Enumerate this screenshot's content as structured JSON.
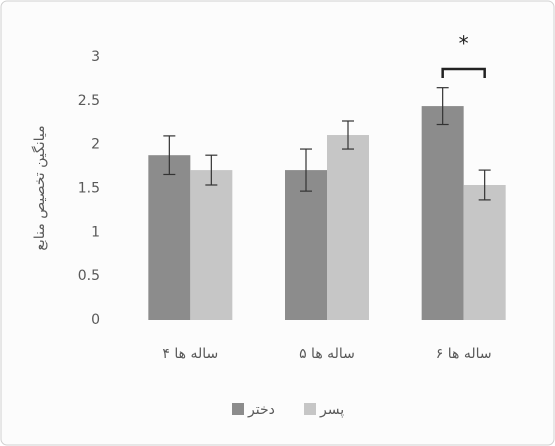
{
  "chart_data": {
    "type": "bar",
    "ylabel": "میانگین تخصیص منابع",
    "categories": [
      "۴ ساله ها",
      "۵ ساله ها",
      "۶ ساله ها"
    ],
    "series": [
      {
        "name": "دختر",
        "color": "#8c8c8c",
        "values": [
          1.88,
          1.71,
          2.44
        ],
        "errors": [
          0.22,
          0.24,
          0.21
        ]
      },
      {
        "name": "پسر",
        "color": "#c6c6c6",
        "values": [
          1.71,
          2.11,
          1.54
        ],
        "errors": [
          0.17,
          0.16,
          0.17
        ]
      }
    ],
    "ylim": [
      0,
      3
    ],
    "yticks": [
      0,
      0.5,
      1,
      1.5,
      2,
      2.5,
      3
    ],
    "grid": false,
    "annotation": "*",
    "legend": "bottom"
  }
}
